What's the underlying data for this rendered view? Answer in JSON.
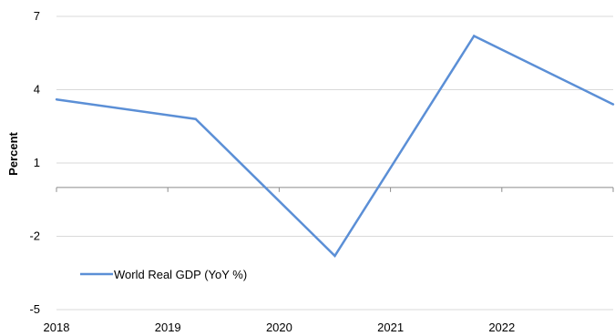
{
  "chart_data": {
    "type": "line",
    "title": "",
    "xlabel": "",
    "ylabel": "Percent",
    "x": [
      2018.0,
      2019.25,
      2020.5,
      2021.75,
      2023.0
    ],
    "x_ticks": [
      "2018",
      "2019",
      "2020",
      "2021",
      "2022"
    ],
    "y_ticks": [
      "7",
      "4",
      "1",
      "-2",
      "-5"
    ],
    "ylim": [
      -5,
      7
    ],
    "xlim": [
      2018,
      2023
    ],
    "grid": "horizontal",
    "legend_position": "bottom-left",
    "series": [
      {
        "name": "World Real GDP (YoY %)",
        "color": "#5b8fd6",
        "values": [
          3.6,
          2.8,
          -2.8,
          6.2,
          3.4
        ]
      }
    ]
  }
}
